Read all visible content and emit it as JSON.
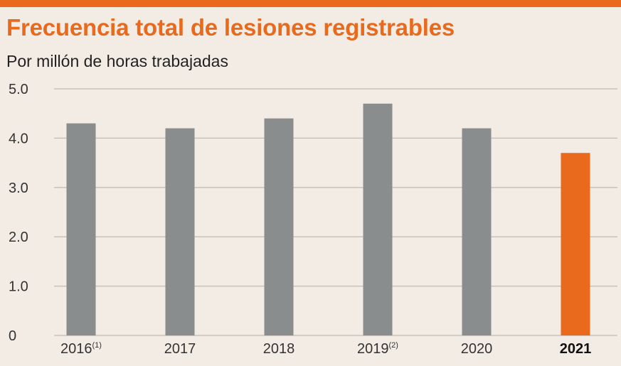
{
  "colors": {
    "accent": "#ea6a1d",
    "bar": "#8a8d8d",
    "bar_highlight": "#ea6a1d",
    "grid": "#c9c2bb",
    "background": "#f3ece5"
  },
  "chart_data": {
    "type": "bar",
    "title": "Frecuencia total de lesiones registrables",
    "subtitle": "Por millón de horas trabajadas",
    "categories": [
      "2016",
      "2017",
      "2018",
      "2019",
      "2020",
      "2021"
    ],
    "category_notes": [
      "(1)",
      "",
      "",
      "(2)",
      "",
      ""
    ],
    "values": [
      4.3,
      4.2,
      4.4,
      4.7,
      4.2,
      3.7
    ],
    "highlight_index": 5,
    "ylim": [
      0,
      5
    ],
    "yticks": [
      0,
      1,
      2,
      3,
      4,
      5
    ],
    "ytick_labels": [
      "0",
      "1.0",
      "2.0",
      "3.0",
      "4.0",
      "5.0"
    ],
    "grid": true,
    "legend": "none"
  }
}
